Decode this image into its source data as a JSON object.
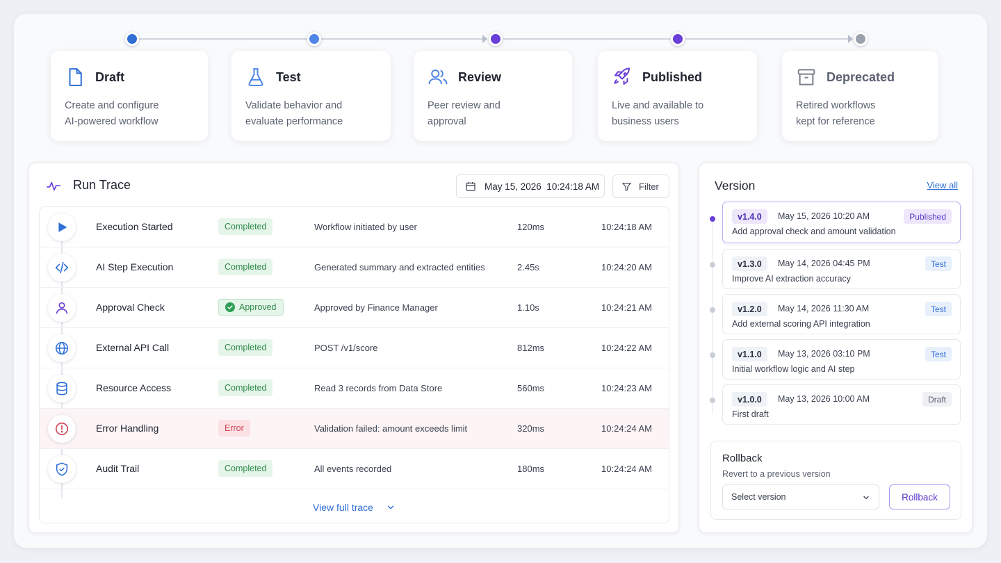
{
  "stages": [
    {
      "id": "draft",
      "title": "Draft",
      "description": "Create and configure\nAI-powered workflow",
      "icon": "document-icon",
      "color": "#2f6fd6"
    },
    {
      "id": "test",
      "title": "Test",
      "description": "Validate behavior and\nevaluate performance",
      "icon": "flask-icon",
      "color": "#4f86e8"
    },
    {
      "id": "review",
      "title": "Review",
      "description": "Peer review and\napproval",
      "icon": "users-icon",
      "color": "#6a3fd8"
    },
    {
      "id": "published",
      "title": "Published",
      "description": "Live and available to\nbusiness users",
      "icon": "rocket-icon",
      "color": "#6a3fd8"
    },
    {
      "id": "deprecated",
      "title": "Deprecated",
      "description": "Retired workflows\nkept for reference",
      "icon": "archive-icon",
      "color": "#9aa0ac"
    }
  ],
  "trace": {
    "title": "Run Trace",
    "date_filter": "May 15, 2026  10:24:18 AM",
    "filter_label": "Filter",
    "view_full": "View full trace",
    "rows": [
      {
        "step": "Execution Started",
        "status": "Completed",
        "status_type": "completed",
        "description": "Workflow initiated by user",
        "duration": "120ms",
        "time": "10:24:18 AM",
        "icon": "play-icon"
      },
      {
        "step": "AI Step Execution",
        "status": "Completed",
        "status_type": "completed",
        "description": "Generated summary and extracted entities",
        "duration": "2.45s",
        "time": "10:24:20 AM",
        "icon": "code-icon"
      },
      {
        "step": "Approval Check",
        "status": "Approved",
        "status_type": "approved",
        "description": "Approved by Finance Manager",
        "duration": "1.10s",
        "time": "10:24:21 AM",
        "icon": "user-icon"
      },
      {
        "step": "External API Call",
        "status": "Completed",
        "status_type": "completed",
        "description": "POST /v1/score",
        "duration": "812ms",
        "time": "10:24:22 AM",
        "icon": "globe-icon"
      },
      {
        "step": "Resource Access",
        "status": "Completed",
        "status_type": "completed",
        "description": "Read 3 records from Data Store",
        "duration": "560ms",
        "time": "10:24:23 AM",
        "icon": "database-icon"
      },
      {
        "step": "Error Handling",
        "status": "Error",
        "status_type": "error",
        "description": "Validation failed: amount exceeds limit",
        "duration": "320ms",
        "time": "10:24:24 AM",
        "icon": "alert-icon"
      },
      {
        "step": "Audit Trail",
        "status": "Completed",
        "status_type": "completed",
        "description": "All events recorded",
        "duration": "180ms",
        "time": "10:24:24 AM",
        "icon": "shield-icon"
      }
    ]
  },
  "version": {
    "title": "Version",
    "view_all": "View all",
    "items": [
      {
        "tag": "v1.4.0",
        "date": "May 15, 2026 10:20 AM",
        "status": "Published",
        "status_type": "published",
        "description": "Add approval check and amount validation",
        "active": true
      },
      {
        "tag": "v1.3.0",
        "date": "May 14, 2026 04:45 PM",
        "status": "Test",
        "status_type": "test",
        "description": "Improve AI extraction accuracy",
        "active": false
      },
      {
        "tag": "v1.2.0",
        "date": "May 14, 2026 11:30 AM",
        "status": "Test",
        "status_type": "test",
        "description": "Add external scoring API integration",
        "active": false
      },
      {
        "tag": "v1.1.0",
        "date": "May 13, 2026 03:10 PM",
        "status": "Test",
        "status_type": "test",
        "description": "Initial workflow logic and AI step",
        "active": false
      },
      {
        "tag": "v1.0.0",
        "date": "May 13, 2026 10:00 AM",
        "status": "Draft",
        "status_type": "draft",
        "description": "First draft",
        "active": false
      }
    ],
    "rollback": {
      "title": "Rollback",
      "subtitle": "Revert to a previous version",
      "select_value": "Select version",
      "button": "Rollback"
    }
  }
}
